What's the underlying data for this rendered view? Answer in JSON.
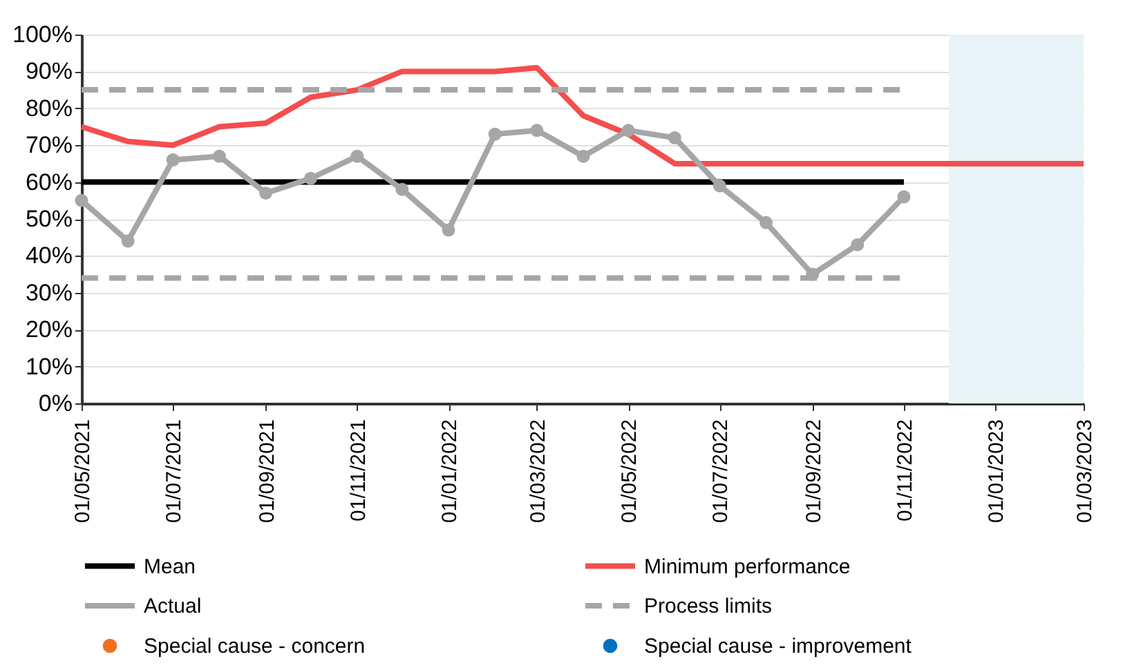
{
  "chart_data": {
    "type": "line",
    "xlim": [
      "2021-05",
      "2023-03"
    ],
    "xticks": [
      {
        "value": "2021-05",
        "label": "01/05/2021"
      },
      {
        "value": "2021-07",
        "label": "01/07/2021"
      },
      {
        "value": "2021-09",
        "label": "01/09/2021"
      },
      {
        "value": "2021-11",
        "label": "01/11/2021"
      },
      {
        "value": "2022-01",
        "label": "01/01/2022"
      },
      {
        "value": "2022-03",
        "label": "01/03/2022"
      },
      {
        "value": "2022-05",
        "label": "01/05/2022"
      },
      {
        "value": "2022-07",
        "label": "01/07/2022"
      },
      {
        "value": "2022-09",
        "label": "01/09/2022"
      },
      {
        "value": "2022-11",
        "label": "01/11/2022"
      },
      {
        "value": "2023-01",
        "label": "01/01/2023"
      },
      {
        "value": "2023-03",
        "label": "01/03/2023"
      }
    ],
    "ylim": [
      0,
      100
    ],
    "yticks": [
      {
        "value": 0,
        "label": "0%"
      },
      {
        "value": 10,
        "label": "10%"
      },
      {
        "value": 20,
        "label": "20%"
      },
      {
        "value": 30,
        "label": "30%"
      },
      {
        "value": 40,
        "label": "40%"
      },
      {
        "value": 50,
        "label": "50%"
      },
      {
        "value": 60,
        "label": "60%"
      },
      {
        "value": 70,
        "label": "70%"
      },
      {
        "value": 80,
        "label": "80%"
      },
      {
        "value": 90,
        "label": "90%"
      },
      {
        "value": 100,
        "label": "100%"
      }
    ],
    "grid": "y",
    "legend": "bottom",
    "bands": [
      {
        "axis": "x",
        "from": "2022-12",
        "to": "2023-03",
        "color": "#e8f4f7"
      }
    ],
    "series": [
      {
        "name": "Mean",
        "color": "#000000",
        "type": "line",
        "line_style": "solid",
        "marker": "none",
        "x": [
          "2021-05",
          "2022-11"
        ],
        "values": [
          60,
          60
        ]
      },
      {
        "name": "Minimum performance",
        "color": "#f44e4e",
        "type": "line",
        "line_style": "solid",
        "marker": "none",
        "x": [
          "2021-05",
          "2021-06",
          "2021-07",
          "2021-08",
          "2021-09",
          "2021-10",
          "2021-11",
          "2021-12",
          "2022-01",
          "2022-02",
          "2022-03",
          "2022-04",
          "2022-05",
          "2022-06",
          "2023-03"
        ],
        "values": [
          75,
          71,
          70,
          75,
          76,
          83,
          85,
          90,
          90,
          90,
          91,
          78,
          73,
          65,
          65
        ]
      },
      {
        "name": "Actual",
        "color": "#a6a6a6",
        "type": "line",
        "line_style": "solid",
        "marker": "circle",
        "x": [
          "2021-05",
          "2021-06",
          "2021-07",
          "2021-08",
          "2021-09",
          "2021-10",
          "2021-11",
          "2021-12",
          "2022-01",
          "2022-02",
          "2022-03",
          "2022-04",
          "2022-05",
          "2022-06",
          "2022-07",
          "2022-08",
          "2022-09",
          "2022-10",
          "2022-11"
        ],
        "values": [
          55,
          44,
          66,
          67,
          57,
          61,
          67,
          58,
          47,
          73,
          74,
          67,
          74,
          72,
          59,
          49,
          35,
          43,
          56
        ]
      },
      {
        "name": "Process limits",
        "color": "#a6a6a6",
        "type": "line",
        "line_style": "dashed",
        "marker": "none",
        "x": [
          "2021-05",
          "2022-11"
        ],
        "values": [
          85,
          85
        ]
      },
      {
        "name": "Special cause - concern",
        "color": "#f07020",
        "type": "scatter",
        "marker": "circle"
      },
      {
        "name": "Special cause - improvement",
        "color": "#0070c0",
        "type": "scatter",
        "marker": "circle"
      },
      {
        "color": "#a6a6a6",
        "type": "line",
        "line_style": "dashed",
        "marker": "none",
        "x": [
          "2021-05",
          "2022-11"
        ],
        "values": [
          34,
          34
        ]
      }
    ]
  }
}
